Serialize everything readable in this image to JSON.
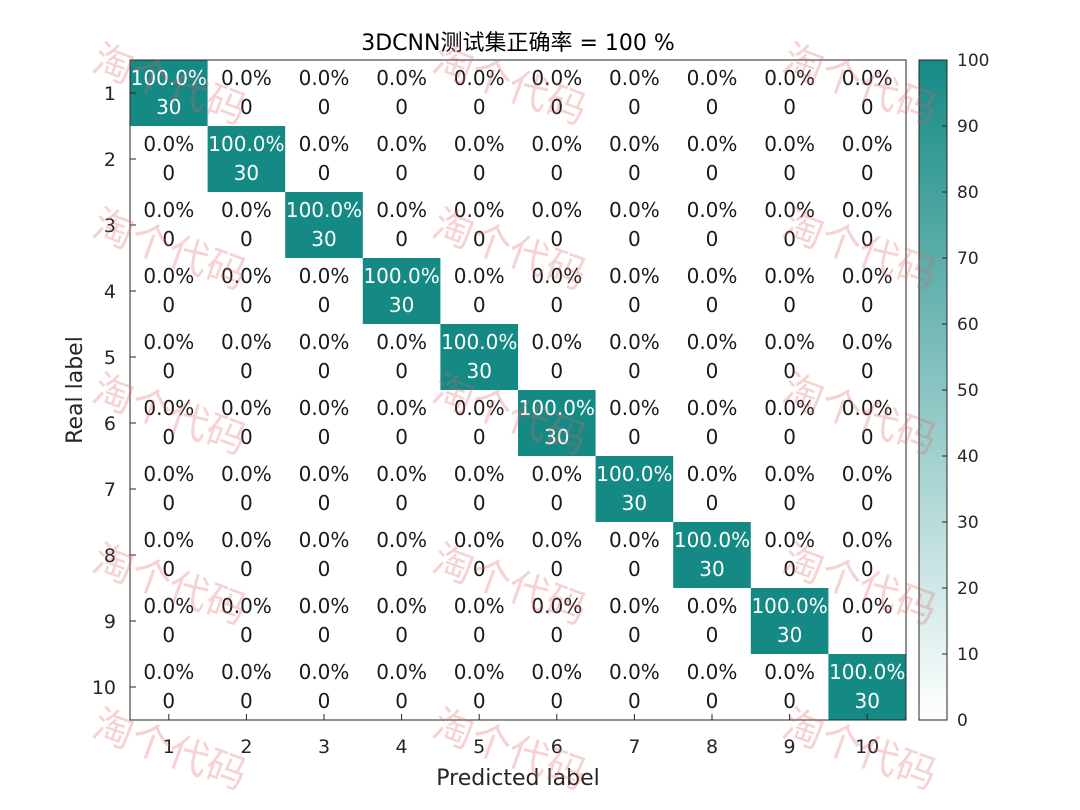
{
  "chart_data": {
    "type": "heatmap",
    "title": "3DCNN测试集正确率 = 100 %",
    "xlabel": "Predicted label",
    "ylabel": "Real label",
    "x_tick_labels": [
      "1",
      "2",
      "3",
      "4",
      "5",
      "6",
      "7",
      "8",
      "9",
      "10"
    ],
    "y_tick_labels": [
      "1",
      "2",
      "3",
      "4",
      "5",
      "6",
      "7",
      "8",
      "9",
      "10"
    ],
    "counts": [
      [
        30,
        0,
        0,
        0,
        0,
        0,
        0,
        0,
        0,
        0
      ],
      [
        0,
        30,
        0,
        0,
        0,
        0,
        0,
        0,
        0,
        0
      ],
      [
        0,
        0,
        30,
        0,
        0,
        0,
        0,
        0,
        0,
        0
      ],
      [
        0,
        0,
        0,
        30,
        0,
        0,
        0,
        0,
        0,
        0
      ],
      [
        0,
        0,
        0,
        0,
        30,
        0,
        0,
        0,
        0,
        0
      ],
      [
        0,
        0,
        0,
        0,
        0,
        30,
        0,
        0,
        0,
        0
      ],
      [
        0,
        0,
        0,
        0,
        0,
        0,
        30,
        0,
        0,
        0
      ],
      [
        0,
        0,
        0,
        0,
        0,
        0,
        0,
        30,
        0,
        0
      ],
      [
        0,
        0,
        0,
        0,
        0,
        0,
        0,
        0,
        30,
        0
      ],
      [
        0,
        0,
        0,
        0,
        0,
        0,
        0,
        0,
        0,
        30
      ]
    ],
    "percentages": [
      [
        "100.0%",
        "0.0%",
        "0.0%",
        "0.0%",
        "0.0%",
        "0.0%",
        "0.0%",
        "0.0%",
        "0.0%",
        "0.0%"
      ],
      [
        "0.0%",
        "100.0%",
        "0.0%",
        "0.0%",
        "0.0%",
        "0.0%",
        "0.0%",
        "0.0%",
        "0.0%",
        "0.0%"
      ],
      [
        "0.0%",
        "0.0%",
        "100.0%",
        "0.0%",
        "0.0%",
        "0.0%",
        "0.0%",
        "0.0%",
        "0.0%",
        "0.0%"
      ],
      [
        "0.0%",
        "0.0%",
        "0.0%",
        "100.0%",
        "0.0%",
        "0.0%",
        "0.0%",
        "0.0%",
        "0.0%",
        "0.0%"
      ],
      [
        "0.0%",
        "0.0%",
        "0.0%",
        "0.0%",
        "100.0%",
        "0.0%",
        "0.0%",
        "0.0%",
        "0.0%",
        "0.0%"
      ],
      [
        "0.0%",
        "0.0%",
        "0.0%",
        "0.0%",
        "0.0%",
        "100.0%",
        "0.0%",
        "0.0%",
        "0.0%",
        "0.0%"
      ],
      [
        "0.0%",
        "0.0%",
        "0.0%",
        "0.0%",
        "0.0%",
        "0.0%",
        "100.0%",
        "0.0%",
        "0.0%",
        "0.0%"
      ],
      [
        "0.0%",
        "0.0%",
        "0.0%",
        "0.0%",
        "0.0%",
        "0.0%",
        "0.0%",
        "100.0%",
        "0.0%",
        "0.0%"
      ],
      [
        "0.0%",
        "0.0%",
        "0.0%",
        "0.0%",
        "0.0%",
        "0.0%",
        "0.0%",
        "0.0%",
        "100.0%",
        "0.0%"
      ],
      [
        "0.0%",
        "0.0%",
        "0.0%",
        "0.0%",
        "0.0%",
        "0.0%",
        "0.0%",
        "0.0%",
        "0.0%",
        "100.0%"
      ]
    ],
    "colorbar": {
      "range": [
        0,
        100
      ],
      "ticks": [
        "0",
        "10",
        "20",
        "30",
        "40",
        "50",
        "60",
        "70",
        "80",
        "90",
        "100"
      ],
      "color_low": "#ffffff",
      "color_high": "#158a85"
    },
    "colors": {
      "cell_high": "#158a85",
      "cell_low": "#ffffff",
      "text_on_high": "#ffffff",
      "text_on_low": "#1a1a1a"
    },
    "watermark": "淘个代码"
  }
}
